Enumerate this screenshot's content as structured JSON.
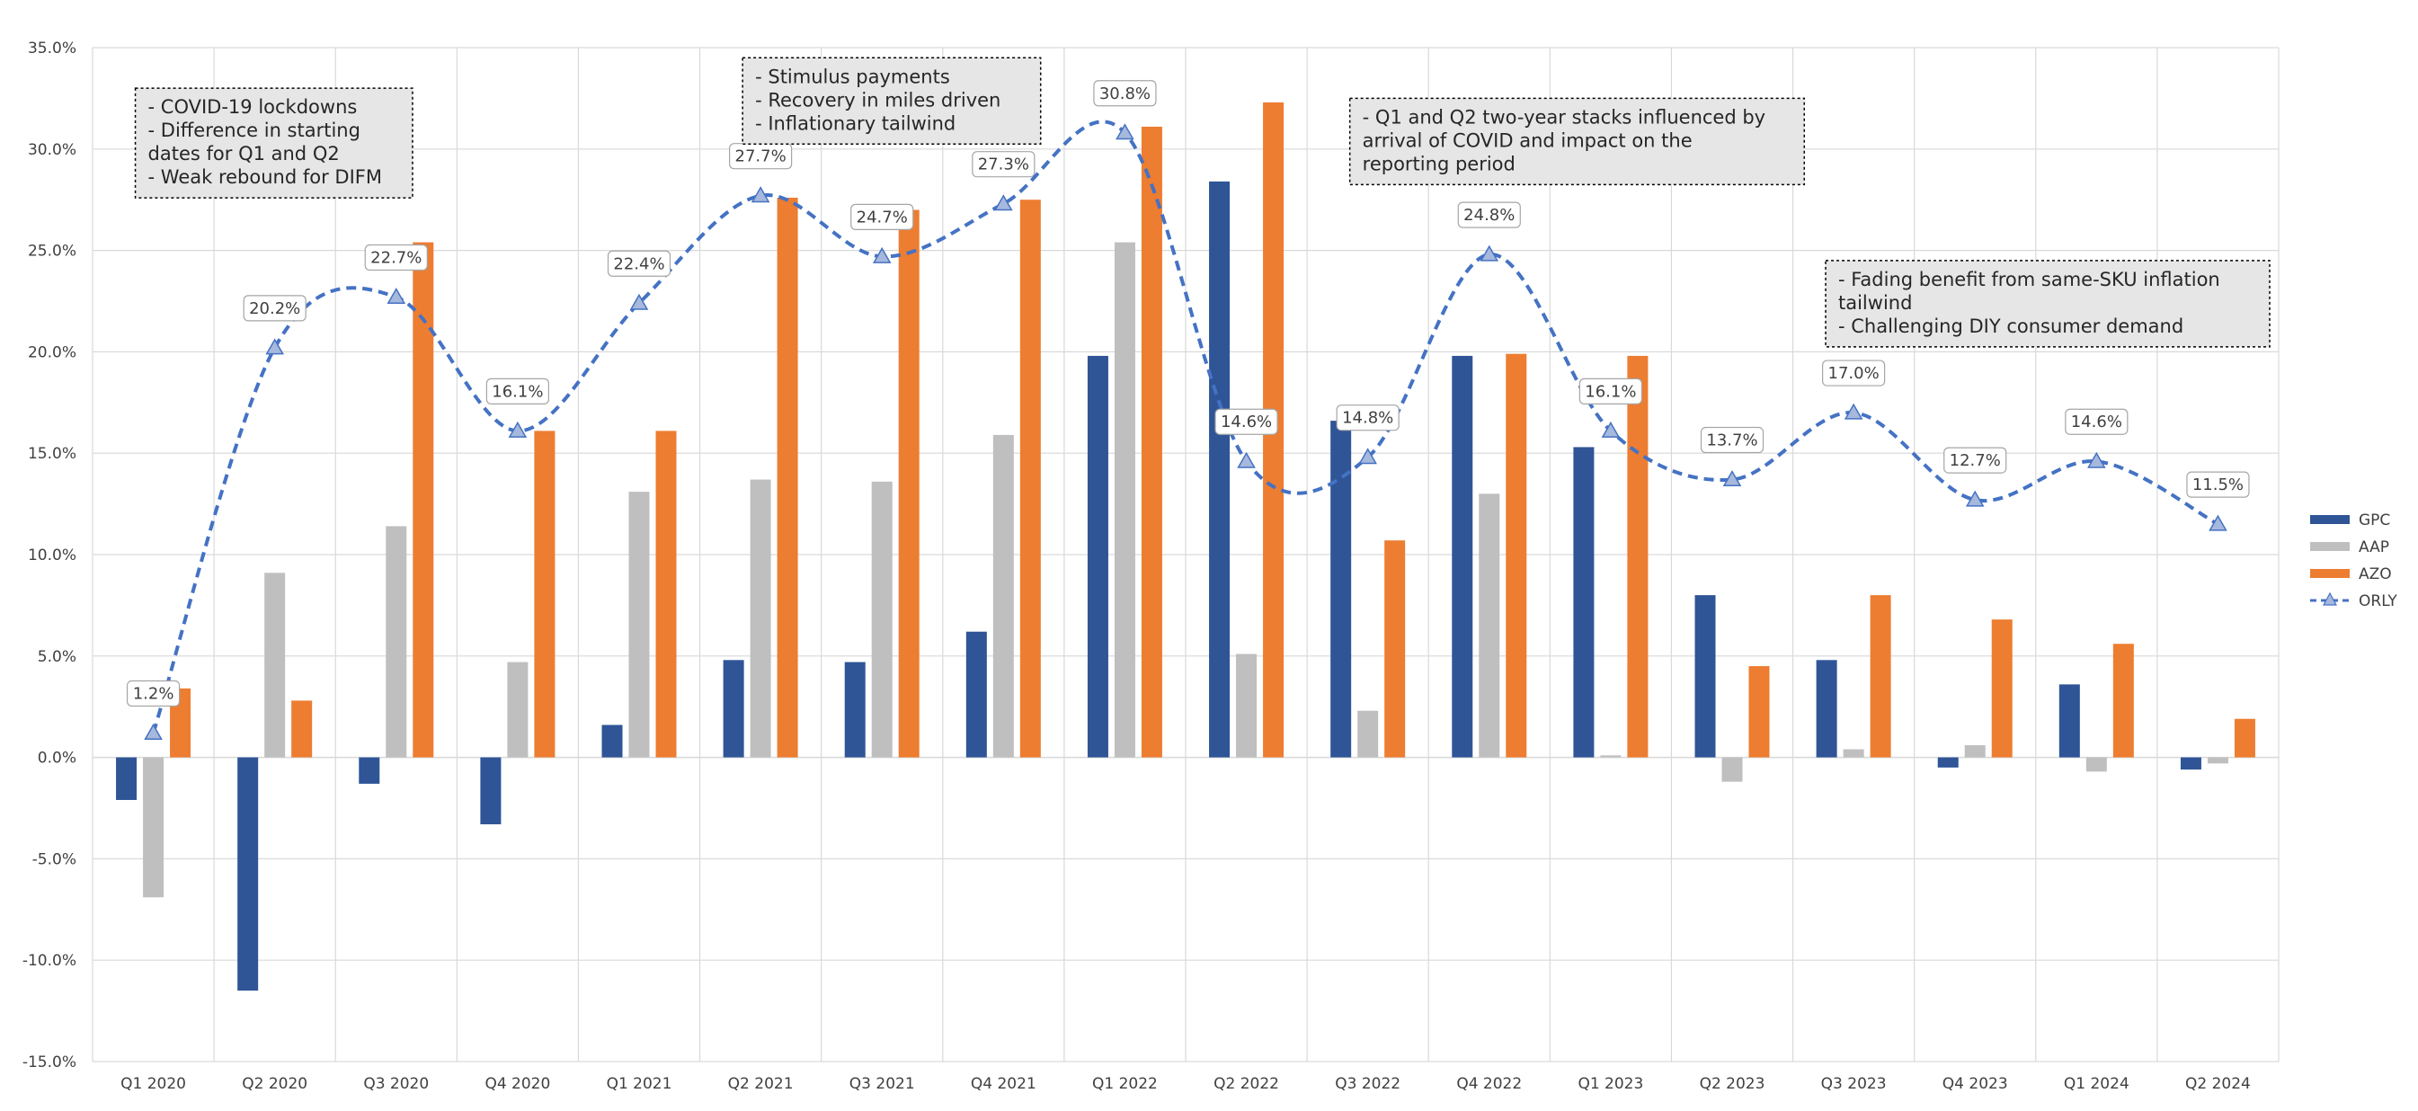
{
  "chart_data": {
    "type": "bar",
    "title": "",
    "xlabel": "",
    "ylabel": "",
    "ylim": [
      -0.15,
      0.35
    ],
    "ytick_step": 0.05,
    "ytick_format": "percent_1dp",
    "grid": true,
    "legend_position": "right",
    "categories": [
      "Q1 2020",
      "Q2 2020",
      "Q3 2020",
      "Q4 2020",
      "Q1 2021",
      "Q2 2021",
      "Q3 2021",
      "Q4 2021",
      "Q1 2022",
      "Q2 2022",
      "Q3 2022",
      "Q4 2022",
      "Q1 2023",
      "Q2 2023",
      "Q3 2023",
      "Q4 2023",
      "Q1 2024",
      "Q2 2024"
    ],
    "series": [
      {
        "name": "GPC",
        "type": "bar",
        "color": "#2F5597",
        "values": [
          -0.021,
          -0.115,
          -0.013,
          -0.033,
          0.016,
          0.048,
          0.047,
          0.062,
          0.198,
          0.284,
          0.166,
          0.198,
          0.153,
          0.08,
          0.048,
          -0.005,
          0.036,
          -0.006
        ]
      },
      {
        "name": "AAP",
        "type": "bar",
        "color": "#BFBFBF",
        "values": [
          -0.069,
          0.091,
          0.114,
          0.047,
          0.131,
          0.137,
          0.136,
          0.159,
          0.254,
          0.051,
          0.023,
          0.13,
          0.001,
          -0.012,
          0.004,
          0.006,
          -0.007,
          -0.003
        ]
      },
      {
        "name": "AZO",
        "type": "bar",
        "color": "#ED7D31",
        "values": [
          0.034,
          0.028,
          0.254,
          0.161,
          0.161,
          0.276,
          0.27,
          0.275,
          0.311,
          0.323,
          0.107,
          0.199,
          0.198,
          0.045,
          0.08,
          0.068,
          0.056,
          0.019
        ]
      },
      {
        "name": "ORLY",
        "type": "line",
        "color": "#4472C4",
        "marker": "triangle",
        "values": [
          0.012,
          0.202,
          0.227,
          0.161,
          0.224,
          0.277,
          0.247,
          0.273,
          0.308,
          0.146,
          0.148,
          0.248,
          0.161,
          0.137,
          0.17,
          0.127,
          0.146,
          0.115
        ],
        "labels": [
          "1.2%",
          "20.2%",
          "22.7%",
          "16.1%",
          "22.4%",
          "27.7%",
          "24.7%",
          "27.3%",
          "30.8%",
          "14.6%",
          "14.8%",
          "24.8%",
          "16.1%",
          "13.7%",
          "17.0%",
          "12.7%",
          "14.6%",
          "11.5%"
        ]
      }
    ],
    "annotations": [
      {
        "anchor_category": "Q1 2020",
        "anchor_y": 0.33,
        "lines": [
          "- COVID-19 lockdowns",
          "- Difference in starting",
          "dates for Q1 and Q2",
          "- Weak rebound for DIFM"
        ]
      },
      {
        "anchor_category": "Q2 2021",
        "anchor_y": 0.345,
        "lines": [
          "- Stimulus payments",
          "- Recovery in miles driven",
          "- Inflationary tailwind"
        ]
      },
      {
        "anchor_category": "Q3 2022",
        "anchor_y": 0.325,
        "lines": [
          "- Q1 and Q2 two-year stacks influenced by",
          "arrival of COVID and impact on the",
          "reporting period"
        ]
      },
      {
        "anchor_category": "Q3 2023",
        "anchor_y": 0.245,
        "lines": [
          "- Fading benefit from same-SKU inflation",
          "tailwind",
          "- Challenging DIY consumer demand"
        ]
      }
    ]
  }
}
